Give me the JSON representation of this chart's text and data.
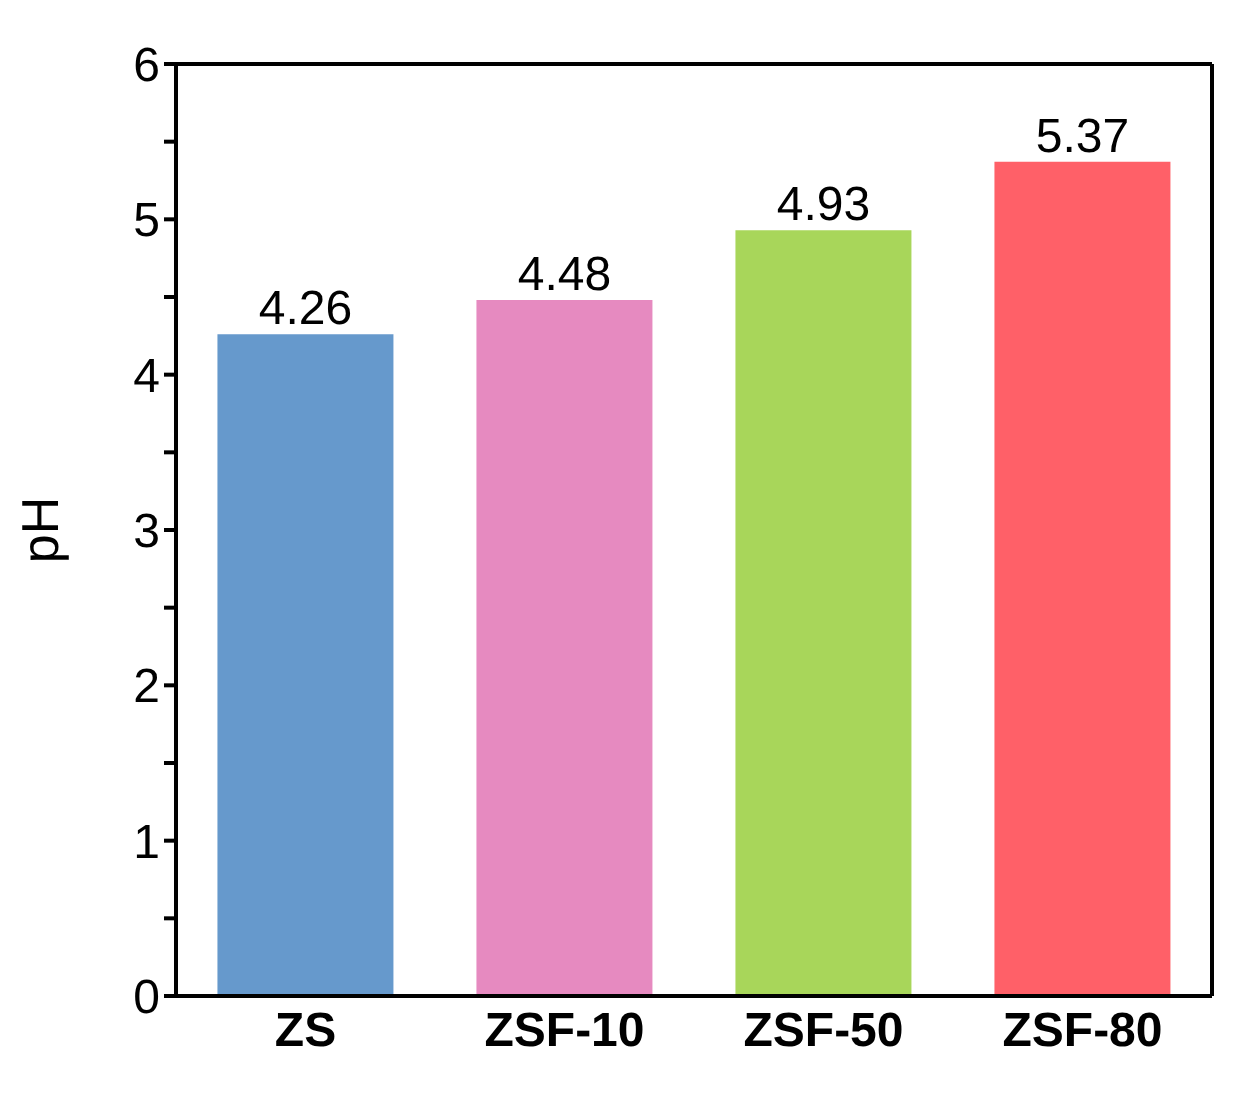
{
  "chart_data": {
    "type": "bar",
    "ylabel": "pH",
    "categories": [
      "ZS",
      "ZSF-10",
      "ZSF-50",
      "ZSF-80"
    ],
    "values": [
      4.26,
      4.48,
      4.93,
      5.37
    ],
    "colors": [
      "#6699cc",
      "#e68ac0",
      "#a8d65a",
      "#ff6068"
    ],
    "ylim": [
      0,
      6
    ],
    "yticks": [
      0,
      {
        "value": 0.5,
        "label": null
      },
      1,
      {
        "value": 1.5,
        "label": null
      },
      2,
      {
        "value": 2.5,
        "label": null
      },
      3,
      {
        "value": 3.5,
        "label": null
      },
      4,
      {
        "value": 4.5,
        "label": null
      },
      5,
      {
        "value": 5.5,
        "label": null
      },
      6
    ],
    "data_labels": true,
    "grid": false
  }
}
